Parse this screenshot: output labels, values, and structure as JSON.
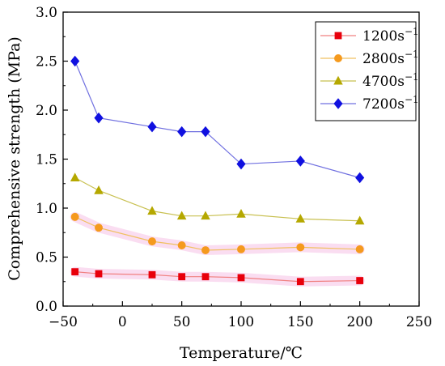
{
  "chart_data": {
    "type": "line",
    "title": "",
    "xlabel": "Temperature/℃",
    "ylabel": "Comprehensive  strength (MPa)",
    "xlim": [
      -50,
      250
    ],
    "ylim": [
      0.0,
      3.0
    ],
    "xticks": [
      -50,
      0,
      50,
      100,
      150,
      200,
      250
    ],
    "yticks": [
      0.0,
      0.5,
      1.0,
      1.5,
      2.0,
      2.5,
      3.0
    ],
    "xtick_labels": [
      "−50",
      "0",
      "50",
      "100",
      "150",
      "200",
      "250"
    ],
    "ytick_labels": [
      "0.0",
      "0.5",
      "1.0",
      "1.5",
      "2.0",
      "2.5",
      "3.0"
    ],
    "grid": false,
    "legend_position": "top-right",
    "x": [
      -40,
      -20,
      25,
      50,
      70,
      100,
      150,
      200
    ],
    "series": [
      {
        "name": "1200s",
        "name_sup": "−1",
        "marker": "square",
        "line_color": "#f08080",
        "marker_color": "#e8000b",
        "band_color": "#f7c6e8",
        "values": [
          0.35,
          0.33,
          0.32,
          0.3,
          0.3,
          0.29,
          0.25,
          0.26
        ]
      },
      {
        "name": "2800s",
        "name_sup": "−1",
        "marker": "circle",
        "line_color": "#f0c060",
        "marker_color": "#f59a1e",
        "band_color": "#f7c6e8",
        "values": [
          0.91,
          0.8,
          0.66,
          0.62,
          0.57,
          0.58,
          0.6,
          0.58
        ]
      },
      {
        "name": "4700s",
        "name_sup": "−1",
        "marker": "triangle",
        "line_color": "#c8c050",
        "marker_color": "#b5a800",
        "band_color": "",
        "values": [
          1.31,
          1.18,
          0.97,
          0.92,
          0.92,
          0.94,
          0.89,
          0.87
        ]
      },
      {
        "name": "7200s",
        "name_sup": "−1",
        "marker": "diamond",
        "line_color": "#7070e0",
        "marker_color": "#1010e0",
        "band_color": "",
        "values": [
          2.5,
          1.92,
          1.83,
          1.78,
          1.78,
          1.45,
          1.48,
          1.31
        ]
      }
    ]
  }
}
